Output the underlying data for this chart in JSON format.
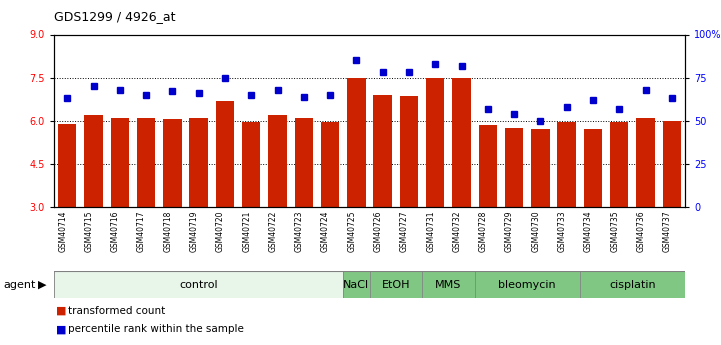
{
  "title": "GDS1299 / 4926_at",
  "samples": [
    "GSM40714",
    "GSM40715",
    "GSM40716",
    "GSM40717",
    "GSM40718",
    "GSM40719",
    "GSM40720",
    "GSM40721",
    "GSM40722",
    "GSM40723",
    "GSM40724",
    "GSM40725",
    "GSM40726",
    "GSM40727",
    "GSM40731",
    "GSM40732",
    "GSM40728",
    "GSM40729",
    "GSM40730",
    "GSM40733",
    "GSM40734",
    "GSM40735",
    "GSM40736",
    "GSM40737"
  ],
  "bar_values": [
    5.9,
    6.2,
    6.1,
    6.1,
    6.05,
    6.1,
    6.7,
    5.95,
    6.2,
    6.1,
    5.95,
    7.5,
    6.9,
    6.85,
    7.5,
    7.5,
    5.85,
    5.75,
    5.7,
    5.95,
    5.7,
    5.95,
    6.1,
    6.0
  ],
  "percentile_values": [
    63,
    70,
    68,
    65,
    67,
    66,
    75,
    65,
    68,
    64,
    65,
    85,
    78,
    78,
    83,
    82,
    57,
    54,
    50,
    58,
    62,
    57,
    68,
    63
  ],
  "agents": [
    {
      "label": "control",
      "start": 0,
      "end": 11,
      "color": "#e8f5e9"
    },
    {
      "label": "NaCl",
      "start": 11,
      "end": 12,
      "color": "#81c784"
    },
    {
      "label": "EtOH",
      "start": 12,
      "end": 14,
      "color": "#81c784"
    },
    {
      "label": "MMS",
      "start": 14,
      "end": 16,
      "color": "#81c784"
    },
    {
      "label": "bleomycin",
      "start": 16,
      "end": 20,
      "color": "#81c784"
    },
    {
      "label": "cisplatin",
      "start": 20,
      "end": 24,
      "color": "#81c784"
    }
  ],
  "ylim_left": [
    3,
    9
  ],
  "ylim_right": [
    0,
    100
  ],
  "yticks_left": [
    3,
    4.5,
    6,
    7.5,
    9
  ],
  "yticks_right": [
    0,
    25,
    50,
    75,
    100
  ],
  "ytick_labels_right": [
    "0",
    "25",
    "50",
    "75",
    "100%"
  ],
  "bar_color": "#cc2200",
  "dot_color": "#0000cc",
  "agent_label_fontsize": 8,
  "tick_fontsize": 7
}
